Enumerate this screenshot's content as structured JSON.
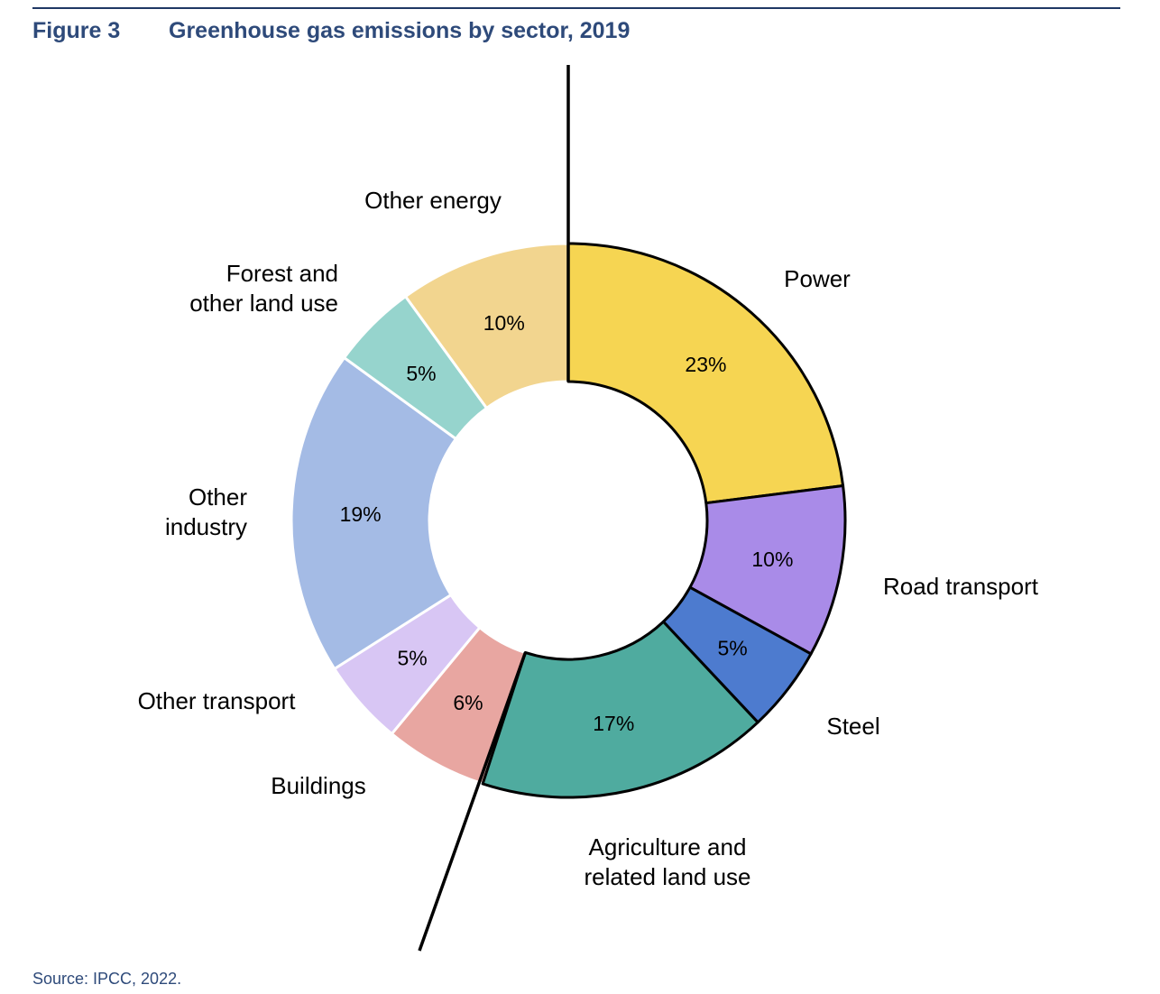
{
  "header": {
    "figure_number": "Figure 3",
    "title": "Greenhouse gas emissions by sector, 2019"
  },
  "source": "Source: IPCC, 2022.",
  "chart_data": {
    "type": "pie",
    "variant": "donut",
    "title": "Greenhouse gas emissions by sector, 2019",
    "unit": "%",
    "start": "12 o'clock, clockwise",
    "slices": [
      {
        "name": "Power",
        "label_lines": [
          "Power"
        ],
        "value": 23,
        "label": "23%",
        "color": "#f6d552",
        "emphasized": true
      },
      {
        "name": "Road transport",
        "label_lines": [
          "Road transport"
        ],
        "value": 10,
        "label": "10%",
        "color": "#a98be8",
        "emphasized": true
      },
      {
        "name": "Steel",
        "label_lines": [
          "Steel"
        ],
        "value": 5,
        "label": "5%",
        "color": "#4d7bcf",
        "emphasized": true
      },
      {
        "name": "Agriculture and related land use",
        "label_lines": [
          "Agriculture and",
          "related land use"
        ],
        "value": 17,
        "label": "17%",
        "color": "#4fab9f",
        "emphasized": true
      },
      {
        "name": "Buildings",
        "label_lines": [
          "Buildings"
        ],
        "value": 6,
        "label": "6%",
        "color": "#e8a6a1",
        "emphasized": false
      },
      {
        "name": "Other transport",
        "label_lines": [
          "Other transport"
        ],
        "value": 5,
        "label": "5%",
        "color": "#d8c6f4",
        "emphasized": false
      },
      {
        "name": "Other industry",
        "label_lines": [
          "Other",
          "industry"
        ],
        "value": 19,
        "label": "19%",
        "color": "#a4bbe5",
        "emphasized": false
      },
      {
        "name": "Forest and other land use",
        "label_lines": [
          "Forest and",
          "other land use"
        ],
        "value": 5,
        "label": "5%",
        "color": "#96d4cd",
        "emphasized": false
      },
      {
        "name": "Other energy",
        "label_lines": [
          "Other energy"
        ],
        "value": 10,
        "label": "10%",
        "color": "#f2d58f",
        "emphasized": false
      }
    ]
  }
}
